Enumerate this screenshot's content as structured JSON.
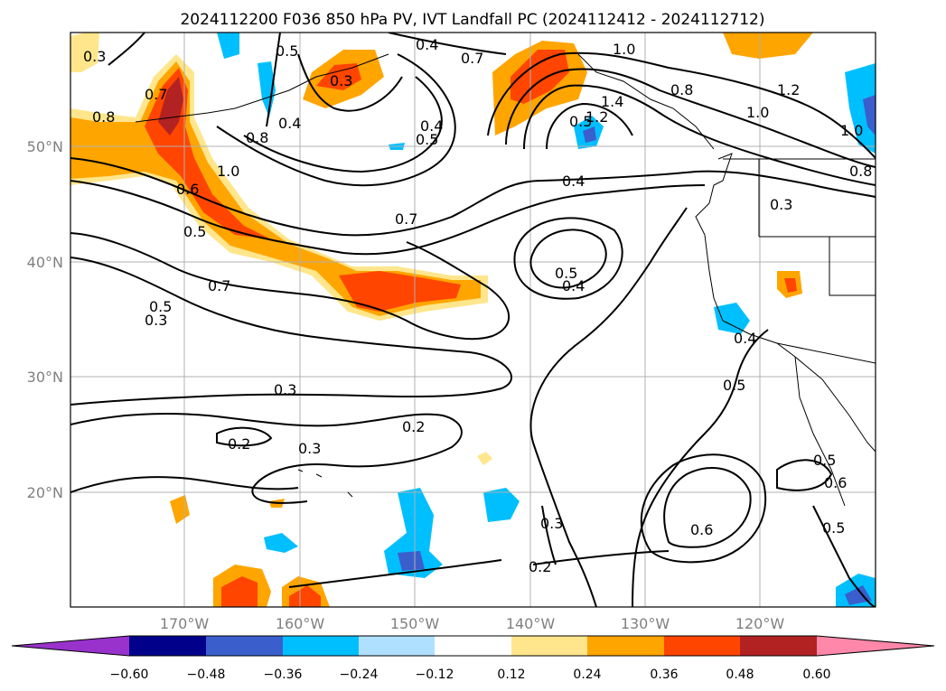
{
  "title": "2024112200 F036 850 hPa PV, IVT Landfall PC (2024112412 - 2024112712)",
  "lat_labels": [
    "50°N",
    "40°N",
    "30°N",
    "20°N"
  ],
  "lon_labels": [
    "170°W",
    "160°W",
    "150°W",
    "140°W",
    "130°W",
    "120°W"
  ],
  "colorbar": {
    "ticks": [
      "−0.60",
      "−0.48",
      "−0.36",
      "−0.24",
      "−0.12",
      "0.12",
      "0.24",
      "0.36",
      "0.48",
      "0.60"
    ],
    "colors": [
      "#9932cc",
      "#00008b",
      "#3a5fcd",
      "#00bfff",
      "#b0e0ff",
      "#ffffff",
      "#ffe68c",
      "#ffa500",
      "#ff4500",
      "#b22222",
      "#ff88aa"
    ]
  },
  "contour_labels": [
    "0.7",
    "0.8",
    "0.6",
    "0.5",
    "0.7",
    "0.5",
    "0.3",
    "0.4",
    "0.8",
    "1.0",
    "0.5",
    "0.4",
    "0.7",
    "0.5",
    "0.3",
    "0.7",
    "1.0",
    "0.8",
    "1.2",
    "1.0",
    "1.4",
    "1.2",
    "0.3",
    "0.4",
    "0.5",
    "0.4",
    "0.6",
    "0.5",
    "0.3",
    "0.2",
    "0.2",
    "0.3",
    "0.3",
    "0.2",
    "0.5",
    "0.6",
    "0.5",
    "0.4",
    "1.0",
    "0.8",
    "0.3",
    "0.4",
    "0.5"
  ]
}
